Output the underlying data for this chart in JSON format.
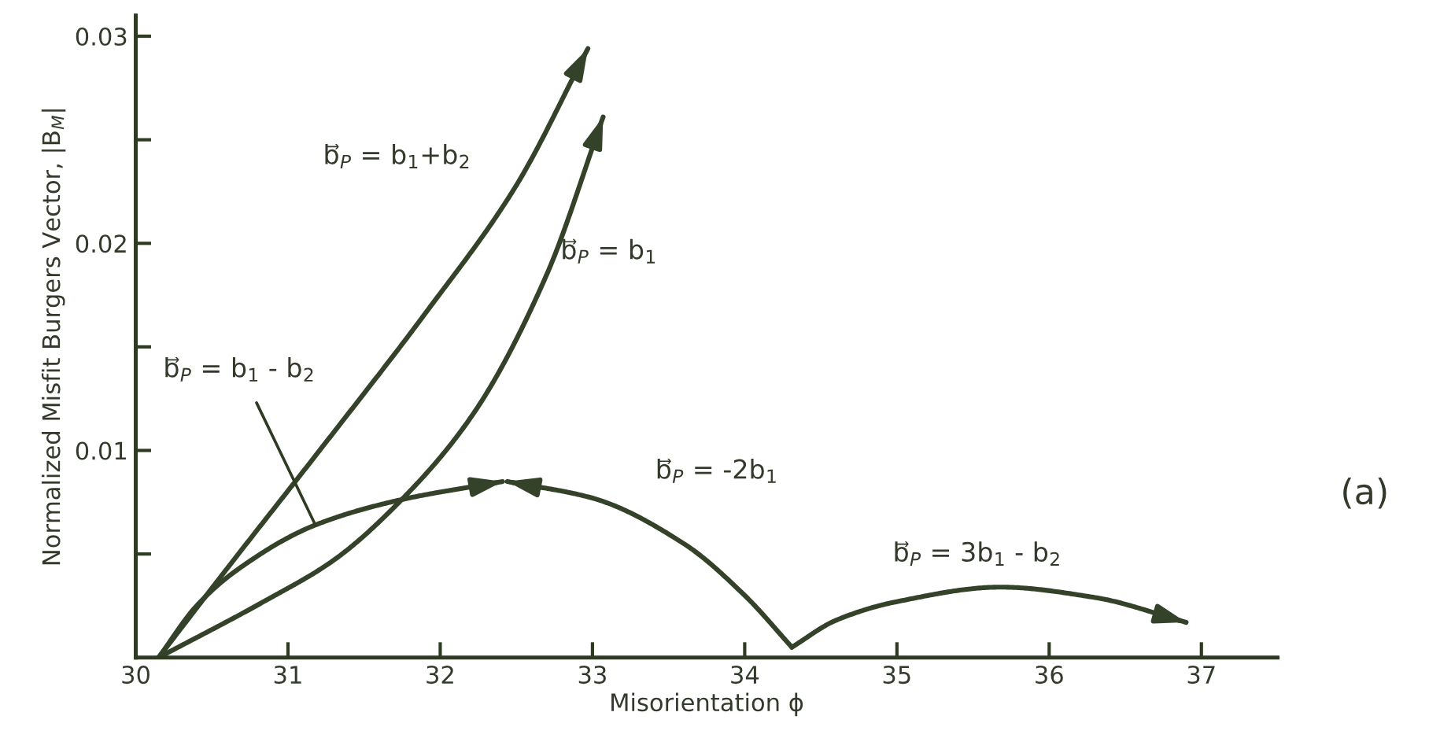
{
  "chart_data": {
    "type": "line",
    "xlabel": "Misorientation ϕ",
    "ylabel": "Normalized Misfit Burgers Vector, |B$_{M}$|",
    "xlim": [
      30,
      37.5
    ],
    "ylim": [
      0,
      0.031
    ],
    "xticks": [
      30,
      31,
      32,
      33,
      34,
      35,
      36,
      37
    ],
    "yticks": [
      {
        "value": 0.005,
        "label": null
      },
      0.01,
      {
        "value": 0.015,
        "label": null
      },
      0.02,
      {
        "value": 0.025,
        "label": null
      },
      0.03
    ],
    "grid": false,
    "legend": false,
    "marker": "none",
    "line_style": "solid",
    "series": [
      {
        "name": "b⃗$_{P}$ = b$_{1}$+b$_{2}$",
        "color": "#34422a",
        "x": [
          30.15,
          30.6,
          31.25,
          31.9,
          32.5,
          32.97
        ],
        "values": [
          0,
          0.0043,
          0.0104,
          0.0166,
          0.0228,
          0.0294
        ]
      },
      {
        "name": "b⃗$_{P}$ = b$_{1}$",
        "color": "#34422a",
        "x": [
          30.15,
          30.84,
          31.3,
          31.73,
          32.22,
          32.7,
          33.07
        ],
        "values": [
          0,
          0.0027,
          0.0047,
          0.0075,
          0.0118,
          0.0185,
          0.0261
        ]
      },
      {
        "name": "b⃗$_{P}$ = b$_{1}$ - b$_{2}$",
        "color": "#34422a",
        "x": [
          30.15,
          30.4,
          30.66,
          31.18,
          31.73,
          32.41
        ],
        "values": [
          0,
          0.0025,
          0.0042,
          0.0064,
          0.0076,
          0.0085
        ]
      },
      {
        "name": "b⃗$_{P}$ = -2b$_{1}$",
        "color": "#34422a",
        "x": [
          34.31,
          34.0,
          33.6,
          33.0,
          32.44
        ],
        "values": [
          0.0005,
          0.003,
          0.0055,
          0.0077,
          0.0085
        ]
      },
      {
        "name": "b⃗$_{P}$ = 3b$_{1}$ - b$_{2}$",
        "color": "#34422a",
        "x": [
          34.31,
          34.6,
          35.0,
          35.68,
          36.3,
          36.9
        ],
        "values": [
          0.0005,
          0.0018,
          0.0027,
          0.0034,
          0.0029,
          0.0017
        ]
      }
    ],
    "annotations": [
      "(a)"
    ]
  }
}
